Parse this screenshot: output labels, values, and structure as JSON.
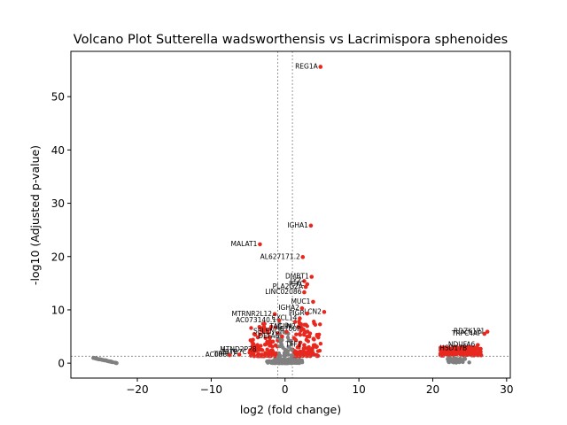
{
  "chart_data": {
    "type": "scatter",
    "title": "Volcano Plot Sutterella wadsworthensis vs Lacrimispora sphenoides",
    "xlabel": "log2 (fold change)",
    "ylabel": "-log10 (Adjusted p-value)",
    "xlim": [
      -29,
      30.5
    ],
    "ylim": [
      -2.8,
      58.5
    ],
    "xticks": [
      -20,
      -10,
      0,
      10,
      20,
      30
    ],
    "xtick_labels": [
      "−20",
      "−10",
      "0",
      "10",
      "20",
      "30"
    ],
    "yticks": [
      0,
      10,
      20,
      30,
      40,
      50
    ],
    "ytick_labels": [
      "0",
      "10",
      "20",
      "30",
      "40",
      "50"
    ],
    "grid": false,
    "threshold_lines": {
      "x": [
        -1,
        1
      ],
      "y": [
        1.3
      ]
    },
    "colors": {
      "significant": "#e8281e",
      "not_significant": "#808080",
      "threshold": "#808080"
    },
    "labeled_points": [
      {
        "label": "REG1A",
        "x": 4.8,
        "y": 55.6
      },
      {
        "label": "IGHA1",
        "x": 3.5,
        "y": 25.8
      },
      {
        "label": "MALAT1",
        "x": -3.4,
        "y": 22.3
      },
      {
        "label": "AL627171.2",
        "x": 2.4,
        "y": 19.9
      },
      {
        "label": "DMBT1",
        "x": 3.6,
        "y": 16.2
      },
      {
        "label": "LYZ",
        "x": 2.6,
        "y": 15.4
      },
      {
        "label": "IGKC",
        "x": 3.0,
        "y": 14.8
      },
      {
        "label": "PLA2G2A",
        "x": 2.8,
        "y": 14.3
      },
      {
        "label": "LINC02086",
        "x": 2.6,
        "y": 13.3
      },
      {
        "label": "MUC1",
        "x": 3.8,
        "y": 11.5
      },
      {
        "label": "LCN2",
        "x": 5.3,
        "y": 9.6
      },
      {
        "label": "IGHA2",
        "x": 2.3,
        "y": 10.3
      },
      {
        "label": "PIGR",
        "x": 3.0,
        "y": 9.3
      },
      {
        "label": "MTRNR2L12",
        "x": -1.4,
        "y": 9.2
      },
      {
        "label": "CXCL14",
        "x": 2.0,
        "y": 8.4
      },
      {
        "label": "AC073140.1",
        "x": -0.8,
        "y": 8.0
      },
      {
        "label": "TAGLN2",
        "x": 1.8,
        "y": 6.8
      },
      {
        "label": "S100P",
        "x": 2.5,
        "y": 6.3
      },
      {
        "label": "SELENOP",
        "x": 0.2,
        "y": 5.9
      },
      {
        "label": "DEFA6",
        "x": -0.4,
        "y": 5.0
      },
      {
        "label": "TFF1",
        "x": 2.6,
        "y": 3.4
      },
      {
        "label": "MTND2P28",
        "x": -3.5,
        "y": 2.5
      },
      {
        "label": "ZBTB7C",
        "x": -4.8,
        "y": 2.0
      },
      {
        "label": "TRPM2",
        "x": -6.2,
        "y": 1.6
      },
      {
        "label": "AC008",
        "x": -7.5,
        "y": 1.5
      },
      {
        "label": "RDZK1P1",
        "x": 27.4,
        "y": 5.9
      },
      {
        "label": "TRPC4AP",
        "x": 27.0,
        "y": 5.5
      },
      {
        "label": "NDUFA6",
        "x": 26.1,
        "y": 3.4
      },
      {
        "label": "HSD17B",
        "x": 25.0,
        "y": 2.8
      }
    ]
  }
}
